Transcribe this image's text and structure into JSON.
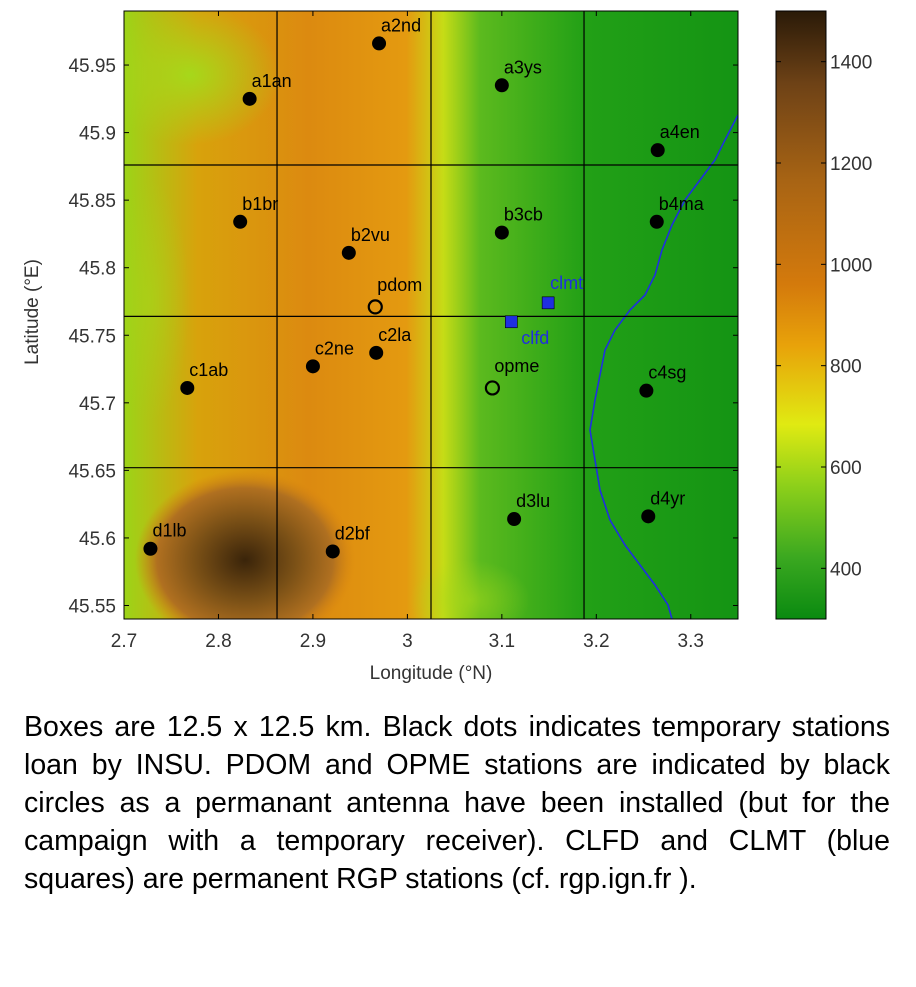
{
  "chart_data": {
    "type": "heatmap",
    "title": "",
    "xlabel": "Longitude (°N)",
    "ylabel": "Latitude (°E)",
    "xlim": [
      2.7,
      3.35
    ],
    "ylim": [
      45.54,
      45.99
    ],
    "x_ticks": [
      2.7,
      2.8,
      2.9,
      3.0,
      3.1,
      3.2,
      3.3
    ],
    "x_tick_labels": [
      "2.7",
      "2.8",
      "2.9",
      "3",
      "3.1",
      "3.2",
      "3.3"
    ],
    "y_ticks": [
      45.55,
      45.6,
      45.65,
      45.7,
      45.75,
      45.8,
      45.85,
      45.9,
      45.95
    ],
    "y_tick_labels": [
      "45.55",
      "45.6",
      "45.65",
      "45.7",
      "45.75",
      "45.8",
      "45.85",
      "45.9",
      "45.95"
    ],
    "grid_lines_x": [
      2.862,
      3.025,
      3.187
    ],
    "grid_lines_y": [
      45.652,
      45.764,
      45.876
    ],
    "colorbar": {
      "range": [
        300,
        1500
      ],
      "ticks": [
        400,
        600,
        800,
        1000,
        1200,
        1400
      ],
      "tick_labels": [
        "400",
        "600",
        "800",
        "1000",
        "1200",
        "1400"
      ],
      "colors": [
        "#0a8a10",
        "#3aa820",
        "#8ed01a",
        "#e0ea12",
        "#e8a20a",
        "#d47a0c",
        "#a86414",
        "#6e4216",
        "#2a1a08"
      ]
    },
    "stations": [
      {
        "name": "a1an",
        "x": 2.833,
        "y": 45.925,
        "kind": "temporary"
      },
      {
        "name": "a2nd",
        "x": 2.97,
        "y": 45.966,
        "kind": "temporary"
      },
      {
        "name": "a3ys",
        "x": 3.1,
        "y": 45.935,
        "kind": "temporary"
      },
      {
        "name": "a4en",
        "x": 3.265,
        "y": 45.887,
        "kind": "temporary"
      },
      {
        "name": "b1br",
        "x": 2.823,
        "y": 45.834,
        "kind": "temporary"
      },
      {
        "name": "b2vu",
        "x": 2.938,
        "y": 45.811,
        "kind": "temporary"
      },
      {
        "name": "b3cb",
        "x": 3.1,
        "y": 45.826,
        "kind": "temporary"
      },
      {
        "name": "b4ma",
        "x": 3.264,
        "y": 45.834,
        "kind": "temporary"
      },
      {
        "name": "c1ab",
        "x": 2.767,
        "y": 45.711,
        "kind": "temporary"
      },
      {
        "name": "c2ne",
        "x": 2.9,
        "y": 45.727,
        "kind": "temporary"
      },
      {
        "name": "c2la",
        "x": 2.967,
        "y": 45.737,
        "kind": "temporary"
      },
      {
        "name": "c4sg",
        "x": 3.253,
        "y": 45.709,
        "kind": "temporary"
      },
      {
        "name": "d1lb",
        "x": 2.728,
        "y": 45.592,
        "kind": "temporary"
      },
      {
        "name": "d2bf",
        "x": 2.921,
        "y": 45.59,
        "kind": "temporary"
      },
      {
        "name": "d3lu",
        "x": 3.113,
        "y": 45.614,
        "kind": "temporary"
      },
      {
        "name": "d4yr",
        "x": 3.255,
        "y": 45.616,
        "kind": "temporary"
      },
      {
        "name": "pdom",
        "x": 2.966,
        "y": 45.771,
        "kind": "permanent-circle"
      },
      {
        "name": "opme",
        "x": 3.09,
        "y": 45.711,
        "kind": "permanent-circle"
      },
      {
        "name": "clmt",
        "x": 3.149,
        "y": 45.774,
        "kind": "rgp-square"
      },
      {
        "name": "clfd",
        "x": 3.11,
        "y": 45.76,
        "kind": "rgp-square"
      }
    ],
    "colors": {
      "river": "#1f2fe0",
      "label_blue": "#1f2fe0",
      "grid": "#000000"
    }
  },
  "caption": "Boxes are 12.5 x 12.5 km. Black dots indicates temporary stations loan by INSU. PDOM and OPME stations are indicated by black circles as a permanant antenna have been installed (but for the campaign with a temporary receiver). CLFD and CLMT (blue squares) are permanent RGP stations (cf. rgp.ign.fr )."
}
